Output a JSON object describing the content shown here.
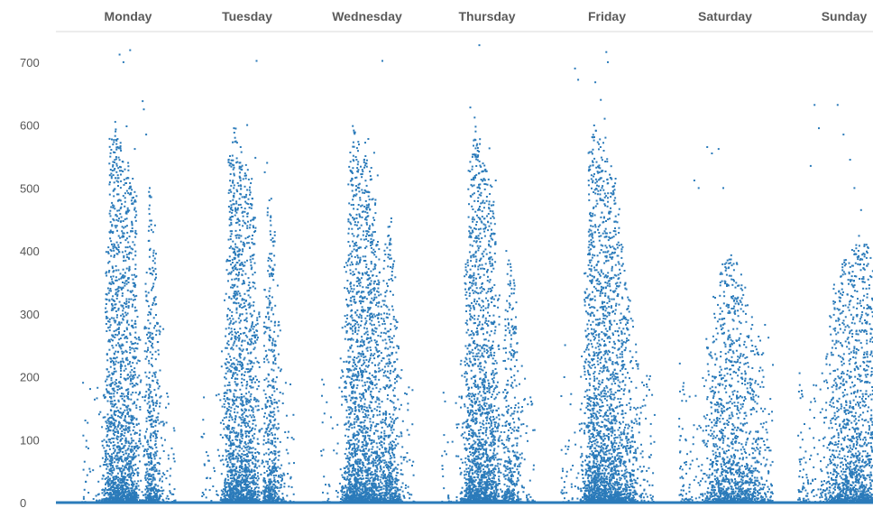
{
  "chart_data": {
    "type": "scatter",
    "title": "",
    "xlabel": "",
    "ylabel": "",
    "categories": [
      "Monday",
      "Tuesday",
      "Wednesday",
      "Thursday",
      "Friday",
      "Saturday",
      "Sunday"
    ],
    "yticks": [
      0,
      100,
      200,
      300,
      400,
      500,
      600,
      700
    ],
    "ylim": [
      0,
      740
    ],
    "grid": false,
    "legend": "none",
    "x_meaning": "hour of day within each weekday panel (0-24)",
    "xlim_per_panel": [
      0,
      24
    ],
    "color": "#2b7bba",
    "series": [
      {
        "category": "Monday",
        "density_profile": [
          0.05,
          0.03,
          0.02,
          0.02,
          0.03,
          0.15,
          0.55,
          0.95,
          1.0,
          0.95,
          0.9,
          0.85,
          0.8,
          0.75,
          0.25,
          0.05,
          0.4,
          0.75,
          0.6,
          0.3,
          0.1,
          0.05,
          0.05,
          0.04
        ],
        "outliers": [
          [
            8.5,
            605
          ],
          [
            9.1,
            578
          ],
          [
            9.6,
            712
          ],
          [
            10.6,
            700
          ],
          [
            11.4,
            598
          ],
          [
            12.3,
            719
          ],
          [
            13.5,
            562
          ],
          [
            15.5,
            638
          ],
          [
            15.8,
            625
          ],
          [
            16.4,
            585
          ],
          [
            17.3,
            500
          ],
          [
            11.8,
            540
          ]
        ]
      },
      {
        "category": "Tuesday",
        "density_profile": [
          0.05,
          0.03,
          0.02,
          0.02,
          0.03,
          0.15,
          0.5,
          0.9,
          1.0,
          0.95,
          0.9,
          0.85,
          0.8,
          0.75,
          0.3,
          0.05,
          0.4,
          0.75,
          0.6,
          0.3,
          0.1,
          0.05,
          0.05,
          0.04
        ],
        "outliers": [
          [
            8.4,
            595
          ],
          [
            9.2,
            572
          ],
          [
            10.1,
            565
          ],
          [
            11.8,
            600
          ],
          [
            13.9,
            548
          ],
          [
            14.2,
            702
          ],
          [
            16.3,
            525
          ],
          [
            16.9,
            540
          ]
        ]
      },
      {
        "category": "Wednesday",
        "density_profile": [
          0.05,
          0.03,
          0.02,
          0.02,
          0.03,
          0.15,
          0.5,
          0.9,
          1.0,
          0.95,
          0.9,
          0.9,
          0.85,
          0.8,
          0.6,
          0.4,
          0.55,
          0.65,
          0.5,
          0.3,
          0.1,
          0.05,
          0.05,
          0.04
        ],
        "outliers": [
          [
            9.1,
            545
          ],
          [
            11.3,
            572
          ],
          [
            12.1,
            578
          ],
          [
            13.6,
            556
          ],
          [
            15.7,
            702
          ],
          [
            14.5,
            520
          ]
        ]
      },
      {
        "category": "Thursday",
        "density_profile": [
          0.05,
          0.03,
          0.02,
          0.02,
          0.03,
          0.15,
          0.5,
          0.9,
          1.0,
          0.95,
          0.9,
          0.85,
          0.8,
          0.75,
          0.35,
          0.1,
          0.35,
          0.5,
          0.4,
          0.25,
          0.1,
          0.05,
          0.05,
          0.05
        ],
        "outliers": [
          [
            7.5,
            628
          ],
          [
            8.6,
            612
          ],
          [
            9.8,
            727
          ],
          [
            12.4,
            563
          ],
          [
            14.0,
            512
          ],
          [
            16.7,
            400
          ],
          [
            17.3,
            285
          ]
        ]
      },
      {
        "category": "Friday",
        "density_profile": [
          0.06,
          0.04,
          0.03,
          0.02,
          0.03,
          0.14,
          0.5,
          0.9,
          1.0,
          0.95,
          0.95,
          0.9,
          0.85,
          0.8,
          0.7,
          0.55,
          0.45,
          0.35,
          0.25,
          0.15,
          0.1,
          0.06,
          0.06,
          0.05
        ],
        "outliers": [
          [
            3.6,
            690
          ],
          [
            4.4,
            672
          ],
          [
            8.8,
            668
          ],
          [
            10.2,
            640
          ],
          [
            11.6,
            716
          ],
          [
            12.0,
            700
          ],
          [
            11.2,
            610
          ],
          [
            11.4,
            580
          ]
        ]
      },
      {
        "category": "Saturday",
        "density_profile": [
          0.1,
          0.08,
          0.06,
          0.04,
          0.03,
          0.05,
          0.1,
          0.2,
          0.3,
          0.4,
          0.45,
          0.5,
          0.5,
          0.5,
          0.5,
          0.45,
          0.4,
          0.35,
          0.3,
          0.25,
          0.2,
          0.15,
          0.1,
          0.1
        ],
        "outliers": [
          [
            3.9,
            512
          ],
          [
            5.0,
            500
          ],
          [
            7.2,
            565
          ],
          [
            8.4,
            555
          ],
          [
            10.1,
            562
          ],
          [
            11.3,
            500
          ],
          [
            12.2,
            362
          ]
        ]
      },
      {
        "category": "Sunday",
        "density_profile": [
          0.1,
          0.08,
          0.06,
          0.05,
          0.04,
          0.05,
          0.1,
          0.15,
          0.3,
          0.4,
          0.45,
          0.5,
          0.5,
          0.55,
          0.55,
          0.55,
          0.55,
          0.55,
          0.5,
          0.45,
          0.4,
          0.35,
          0.3,
          0.25
        ],
        "outliers": [
          [
            3.2,
            535
          ],
          [
            4.2,
            632
          ],
          [
            5.3,
            595
          ],
          [
            10.1,
            632
          ],
          [
            11.6,
            585
          ],
          [
            13.3,
            545
          ],
          [
            14.4,
            500
          ],
          [
            16.1,
            465
          ]
        ]
      }
    ]
  }
}
